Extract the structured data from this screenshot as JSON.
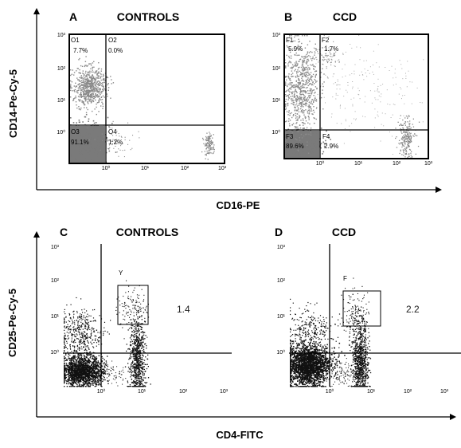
{
  "chart_data": [
    {
      "type": "scatter",
      "panel_letter": "A",
      "title": "CONTROLS",
      "xlabel": "CD16-PE",
      "ylabel": "CD14-Pe-Cy-5",
      "scale": "log",
      "xlim": [
        0.1,
        1000
      ],
      "ylim": [
        0.1,
        1000
      ],
      "x_ticks": [
        "10⁰",
        "10¹",
        "10²",
        "10³"
      ],
      "y_ticks": [
        "10³",
        "10²",
        "10¹",
        "10⁰"
      ],
      "quadrants": [
        {
          "name": "O1",
          "value": "7.7%"
        },
        {
          "name": "O2",
          "value": "0.0%"
        },
        {
          "name": "O3",
          "value": "91.1%"
        },
        {
          "name": "O4",
          "value": "1.2%"
        }
      ]
    },
    {
      "type": "scatter",
      "panel_letter": "B",
      "title": "CCD",
      "xlabel": "CD16-PE",
      "ylabel": "CD14-Pe-Cy-5",
      "scale": "log",
      "xlim": [
        0.1,
        1000
      ],
      "ylim": [
        0.1,
        1000
      ],
      "x_ticks": [
        "10⁰",
        "10¹",
        "10²",
        "10³"
      ],
      "y_ticks": [
        "10³",
        "10²",
        "10¹",
        "10⁰"
      ],
      "quadrants": [
        {
          "name": "F1",
          "value": "5.9%"
        },
        {
          "name": "F2",
          "value": "1.7%"
        },
        {
          "name": "F3",
          "value": "89.6%"
        },
        {
          "name": "F4",
          "value": "2.9%"
        }
      ]
    },
    {
      "type": "scatter",
      "panel_letter": "C",
      "title": "CONTROLS",
      "xlabel": "CD4-FITC",
      "ylabel": "CD25-Pe-Cy-5",
      "scale": "log",
      "xlim": [
        0.1,
        1000
      ],
      "ylim": [
        0.1,
        1000
      ],
      "x_ticks": [
        "10⁰",
        "10¹",
        "10²",
        "10³"
      ],
      "y_ticks": [
        "10³",
        "10²",
        "10¹",
        "10⁰"
      ],
      "gate": {
        "name": "Y",
        "value": "1.4"
      }
    },
    {
      "type": "scatter",
      "panel_letter": "D",
      "title": "CCD",
      "xlabel": "CD4-FITC",
      "ylabel": "CD25-Pe-Cy-5",
      "scale": "log",
      "xlim": [
        0.1,
        1000
      ],
      "ylim": [
        0.1,
        1000
      ],
      "x_ticks": [
        "10⁰",
        "10¹",
        "10²",
        "10³"
      ],
      "y_ticks": [
        "10³",
        "10²",
        "10¹",
        "10⁰"
      ],
      "gate": {
        "name": "F",
        "value": "2.2"
      }
    }
  ],
  "top_row": {
    "ylabel": "CD14-Pe-Cy-5",
    "xlabel": "CD16-PE"
  },
  "bottom_row": {
    "ylabel": "CD25-Pe-Cy-5",
    "xlabel": "CD4-FITC"
  },
  "colors": {
    "top_dots": "#8a8a8a",
    "top_dense": "#7a7a7a",
    "bottom_dots": "#111111"
  }
}
